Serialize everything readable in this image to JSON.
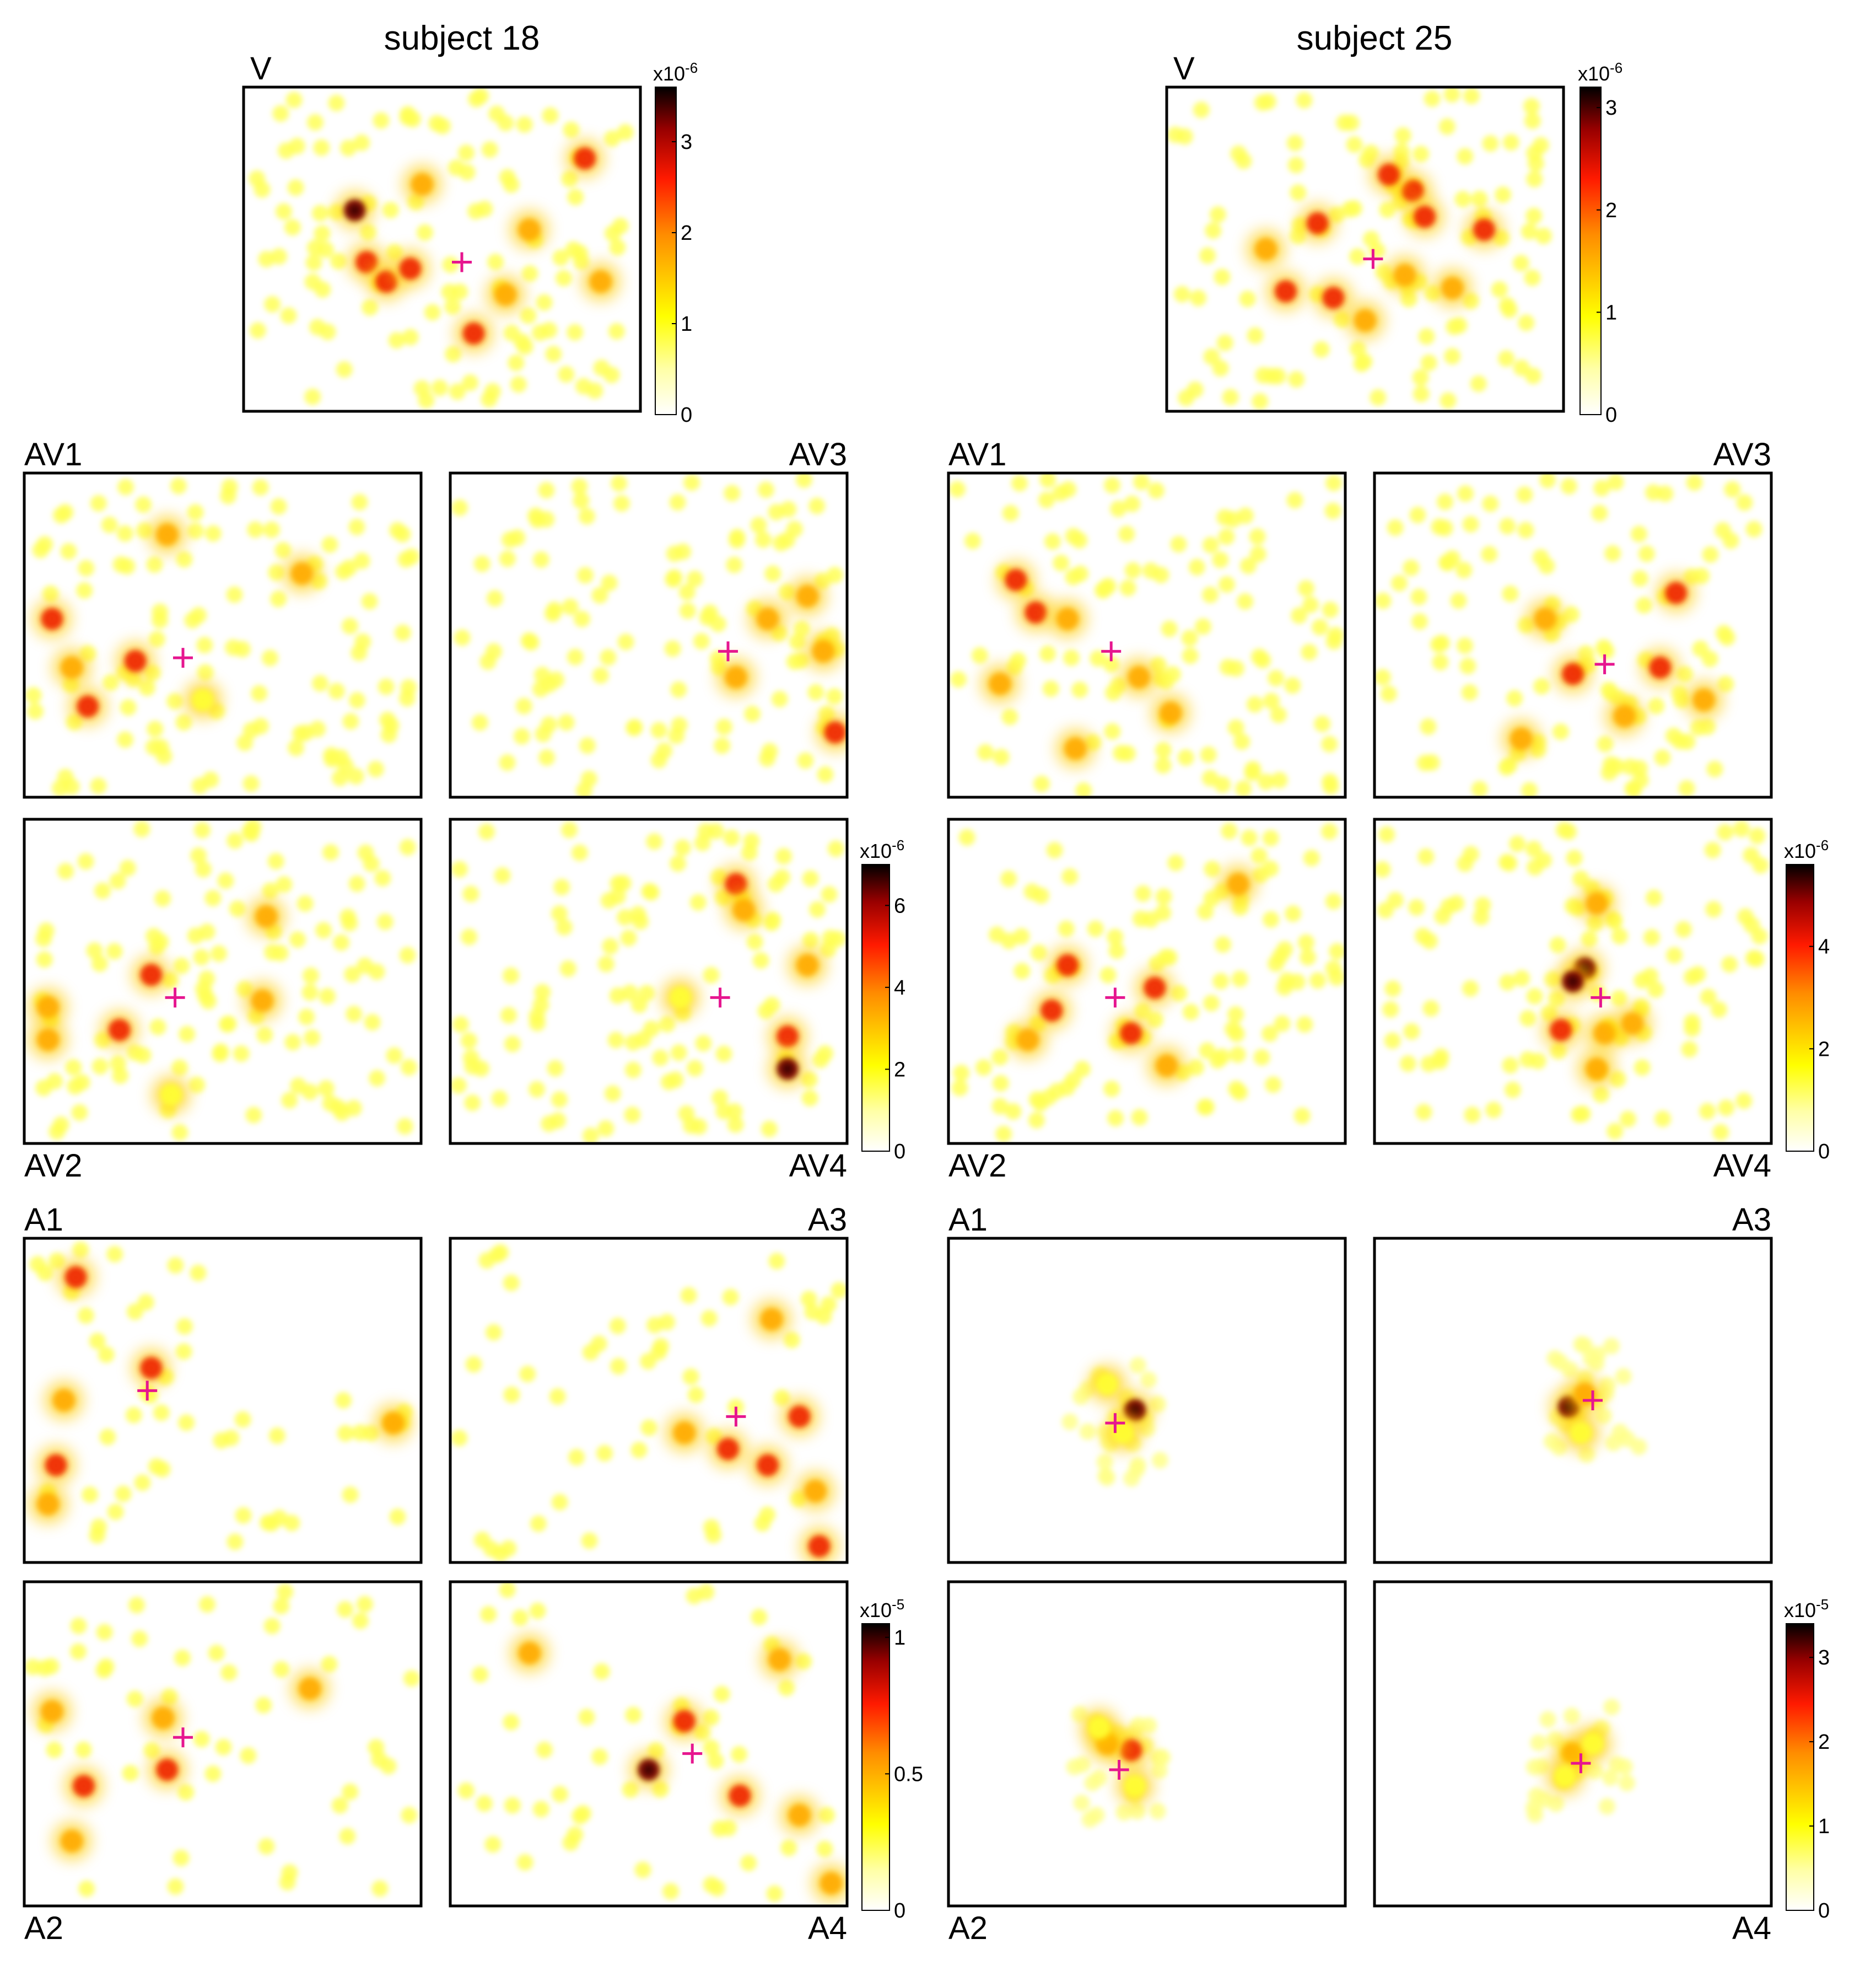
{
  "chart_data": {
    "type": "heatmap",
    "subjects": [
      {
        "title": "subject 18",
        "panels": [
          {
            "label": "V",
            "fixation": [
              0.55,
              0.54
            ],
            "hotspots": [
              [
                0.28,
                0.38,
                1.0
              ],
              [
                0.31,
                0.54,
                0.85
              ],
              [
                0.36,
                0.6,
                0.8
              ],
              [
                0.42,
                0.56,
                0.75
              ],
              [
                0.58,
                0.76,
                0.8
              ],
              [
                0.72,
                0.44,
                0.6
              ],
              [
                0.86,
                0.22,
                0.7
              ],
              [
                0.9,
                0.6,
                0.5
              ],
              [
                0.66,
                0.64,
                0.5
              ],
              [
                0.45,
                0.3,
                0.5
              ]
            ]
          },
          {
            "label": "AV1",
            "fixation": [
              0.4,
              0.57
            ],
            "hotspots": [
              [
                0.07,
                0.45,
                0.7
              ],
              [
                0.28,
                0.58,
                0.8
              ],
              [
                0.16,
                0.72,
                0.7
              ],
              [
                0.36,
                0.19,
                0.6
              ],
              [
                0.7,
                0.31,
                0.6
              ],
              [
                0.12,
                0.6,
                0.5
              ],
              [
                0.45,
                0.7,
                0.4
              ]
            ]
          },
          {
            "label": "AV2",
            "fixation": [
              0.38,
              0.55
            ],
            "hotspots": [
              [
                0.32,
                0.48,
                0.7
              ],
              [
                0.24,
                0.65,
                0.7
              ],
              [
                0.06,
                0.58,
                0.6
              ],
              [
                0.06,
                0.68,
                0.6
              ],
              [
                0.6,
                0.56,
                0.5
              ],
              [
                0.61,
                0.3,
                0.5
              ],
              [
                0.37,
                0.85,
                0.4
              ]
            ]
          },
          {
            "label": "AV3",
            "fixation": [
              0.7,
              0.55
            ],
            "hotspots": [
              [
                0.72,
                0.63,
                0.6
              ],
              [
                0.94,
                0.55,
                0.6
              ],
              [
                0.97,
                0.8,
                0.7
              ],
              [
                0.8,
                0.45,
                0.5
              ],
              [
                0.9,
                0.38,
                0.5
              ]
            ]
          },
          {
            "label": "AV4",
            "fixation": [
              0.68,
              0.55
            ],
            "hotspots": [
              [
                0.72,
                0.2,
                0.8
              ],
              [
                0.85,
                0.67,
                0.75
              ],
              [
                0.85,
                0.77,
                0.9
              ],
              [
                0.74,
                0.28,
                0.6
              ],
              [
                0.9,
                0.45,
                0.5
              ],
              [
                0.58,
                0.55,
                0.4
              ]
            ]
          },
          {
            "label": "A1",
            "fixation": [
              0.31,
              0.47
            ],
            "hotspots": [
              [
                0.13,
                0.12,
                0.8
              ],
              [
                0.32,
                0.4,
                0.8
              ],
              [
                0.08,
                0.7,
                0.7
              ],
              [
                0.06,
                0.82,
                0.6
              ],
              [
                0.93,
                0.57,
                0.6
              ],
              [
                0.1,
                0.5,
                0.5
              ]
            ]
          },
          {
            "label": "A2",
            "fixation": [
              0.4,
              0.48
            ],
            "hotspots": [
              [
                0.15,
                0.63,
                0.8
              ],
              [
                0.36,
                0.58,
                0.7
              ],
              [
                0.12,
                0.8,
                0.6
              ],
              [
                0.72,
                0.33,
                0.6
              ],
              [
                0.35,
                0.42,
                0.5
              ],
              [
                0.07,
                0.4,
                0.5
              ]
            ]
          },
          {
            "label": "A3",
            "fixation": [
              0.72,
              0.55
            ],
            "hotspots": [
              [
                0.7,
                0.65,
                0.8
              ],
              [
                0.8,
                0.7,
                0.8
              ],
              [
                0.88,
                0.55,
                0.7
              ],
              [
                0.81,
                0.25,
                0.6
              ],
              [
                0.93,
                0.95,
                0.7
              ],
              [
                0.59,
                0.6,
                0.5
              ],
              [
                0.92,
                0.78,
                0.6
              ]
            ]
          },
          {
            "label": "A4",
            "fixation": [
              0.61,
              0.53
            ],
            "hotspots": [
              [
                0.5,
                0.58,
                1.0
              ],
              [
                0.73,
                0.66,
                0.8
              ],
              [
                0.59,
                0.43,
                0.7
              ],
              [
                0.88,
                0.72,
                0.6
              ],
              [
                0.2,
                0.22,
                0.6
              ],
              [
                0.83,
                0.24,
                0.6
              ],
              [
                0.96,
                0.93,
                0.5
              ]
            ]
          }
        ],
        "colorbars": [
          {
            "panels": [
              "V"
            ],
            "exponent": "x10",
            "power": "-6",
            "ticks": [
              "0",
              "1",
              "2",
              "3"
            ],
            "max": 3.6
          },
          {
            "panels": [
              "AV1",
              "AV2",
              "AV3",
              "AV4"
            ],
            "exponent": "x10",
            "power": "-6",
            "ticks": [
              "0",
              "2",
              "4",
              "6"
            ],
            "max": 7.0
          },
          {
            "panels": [
              "A1",
              "A2",
              "A3",
              "A4"
            ],
            "exponent": "x10",
            "power": "-5",
            "ticks": [
              "0",
              "0.5",
              "1"
            ],
            "max": 1.05
          }
        ]
      },
      {
        "title": "subject 25",
        "panels": [
          {
            "label": "V",
            "fixation": [
              0.52,
              0.53
            ],
            "hotspots": [
              [
                0.38,
                0.42,
                0.8
              ],
              [
                0.62,
                0.32,
                0.8
              ],
              [
                0.65,
                0.4,
                0.85
              ],
              [
                0.8,
                0.44,
                0.75
              ],
              [
                0.56,
                0.27,
                0.7
              ],
              [
                0.3,
                0.63,
                0.7
              ],
              [
                0.42,
                0.65,
                0.7
              ],
              [
                0.6,
                0.58,
                0.6
              ],
              [
                0.72,
                0.62,
                0.6
              ],
              [
                0.5,
                0.72,
                0.5
              ],
              [
                0.25,
                0.5,
                0.5
              ]
            ]
          },
          {
            "label": "AV1",
            "fixation": [
              0.41,
              0.55
            ],
            "hotspots": [
              [
                0.17,
                0.33,
                0.8
              ],
              [
                0.22,
                0.43,
                0.7
              ],
              [
                0.3,
                0.45,
                0.6
              ],
              [
                0.48,
                0.63,
                0.6
              ],
              [
                0.56,
                0.74,
                0.6
              ],
              [
                0.32,
                0.85,
                0.5
              ],
              [
                0.13,
                0.65,
                0.5
              ]
            ]
          },
          {
            "label": "AV2",
            "fixation": [
              0.42,
              0.55
            ],
            "hotspots": [
              [
                0.52,
                0.52,
                0.85
              ],
              [
                0.46,
                0.66,
                0.7
              ],
              [
                0.3,
                0.45,
                0.7
              ],
              [
                0.26,
                0.59,
                0.7
              ],
              [
                0.55,
                0.76,
                0.6
              ],
              [
                0.2,
                0.68,
                0.5
              ],
              [
                0.73,
                0.2,
                0.5
              ]
            ]
          },
          {
            "label": "AV3",
            "fixation": [
              0.58,
              0.59
            ],
            "hotspots": [
              [
                0.76,
                0.37,
                0.7
              ],
              [
                0.5,
                0.62,
                0.75
              ],
              [
                0.72,
                0.6,
                0.7
              ],
              [
                0.63,
                0.75,
                0.6
              ],
              [
                0.37,
                0.82,
                0.6
              ],
              [
                0.83,
                0.7,
                0.5
              ],
              [
                0.43,
                0.45,
                0.5
              ]
            ]
          },
          {
            "label": "AV4",
            "fixation": [
              0.57,
              0.55
            ],
            "hotspots": [
              [
                0.53,
                0.46,
                1.0
              ],
              [
                0.5,
                0.5,
                0.9
              ],
              [
                0.47,
                0.65,
                0.7
              ],
              [
                0.58,
                0.66,
                0.6
              ],
              [
                0.56,
                0.77,
                0.6
              ],
              [
                0.65,
                0.63,
                0.5
              ],
              [
                0.56,
                0.26,
                0.5
              ]
            ]
          },
          {
            "label": "A1",
            "fixation": [
              0.42,
              0.57
            ],
            "hotspots": [
              [
                0.47,
                0.53,
                1.0
              ],
              [
                0.44,
                0.6,
                0.4
              ],
              [
                0.4,
                0.45,
                0.3
              ]
            ]
          },
          {
            "label": "A2",
            "fixation": [
              0.43,
              0.58
            ],
            "hotspots": [
              [
                0.46,
                0.52,
                0.8
              ],
              [
                0.4,
                0.5,
                0.6
              ],
              [
                0.47,
                0.63,
                0.4
              ],
              [
                0.38,
                0.45,
                0.4
              ]
            ]
          },
          {
            "label": "A3",
            "fixation": [
              0.55,
              0.5
            ],
            "hotspots": [
              [
                0.49,
                0.52,
                1.0
              ],
              [
                0.53,
                0.48,
                0.6
              ],
              [
                0.52,
                0.6,
                0.3
              ]
            ]
          },
          {
            "label": "A4",
            "fixation": [
              0.52,
              0.56
            ],
            "hotspots": [
              [
                0.5,
                0.53,
                0.5
              ],
              [
                0.55,
                0.5,
                0.4
              ],
              [
                0.48,
                0.6,
                0.35
              ]
            ]
          }
        ],
        "colorbars": [
          {
            "panels": [
              "V"
            ],
            "exponent": "x10",
            "power": "-6",
            "ticks": [
              "0",
              "1",
              "2",
              "3"
            ],
            "max": 3.2
          },
          {
            "panels": [
              "AV1",
              "AV2",
              "AV3",
              "AV4"
            ],
            "exponent": "x10",
            "power": "-6",
            "ticks": [
              "0",
              "2",
              "4"
            ],
            "max": 5.6
          },
          {
            "panels": [
              "A1",
              "A2",
              "A3",
              "A4"
            ],
            "exponent": "x10",
            "power": "-5",
            "ticks": [
              "0",
              "1",
              "2",
              "3"
            ],
            "max": 3.4
          }
        ]
      }
    ]
  }
}
